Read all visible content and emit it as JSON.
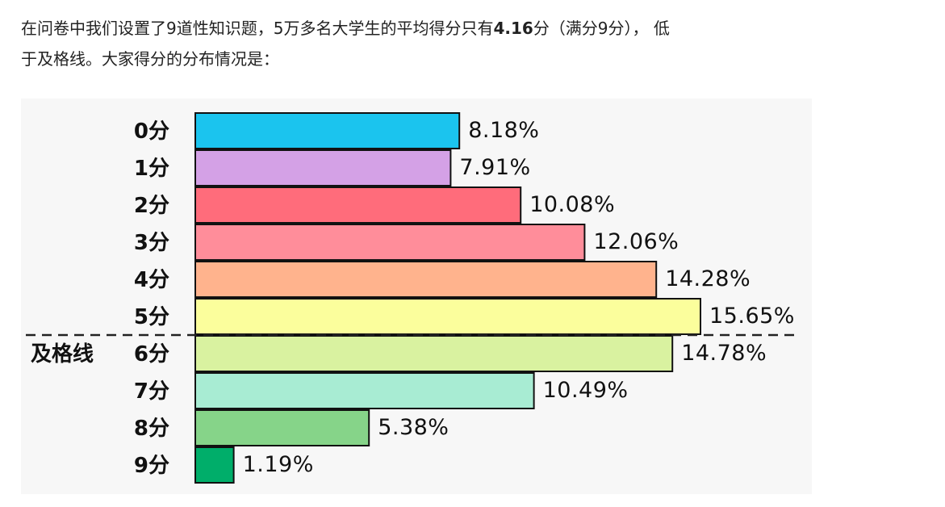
{
  "intro": {
    "line1_a": "在问卷中我们设置了9道性知识题，5万多名大学生的平均得分只有",
    "line1_bold": "4.16",
    "line1_b": "分（满分9分）， 低",
    "line2": "于及格线。大家得分的分布情况是："
  },
  "chart_data": {
    "type": "bar",
    "orientation": "horizontal",
    "categories": [
      "0分",
      "1分",
      "2分",
      "3分",
      "4分",
      "5分",
      "6分",
      "7分",
      "8分",
      "9分"
    ],
    "values": [
      8.18,
      7.91,
      10.08,
      12.06,
      14.28,
      15.65,
      14.78,
      10.49,
      5.38,
      1.19
    ],
    "value_labels": [
      "8.18%",
      "7.91%",
      "10.08%",
      "12.06%",
      "14.28%",
      "15.65%",
      "14.78%",
      "10.49%",
      "5.38%",
      "1.19%"
    ],
    "unit": "%",
    "colors": [
      "#1bc4ee",
      "#d4a1e6",
      "#ff6c7b",
      "#ff8d9a",
      "#ffb38d",
      "#fbfe9c",
      "#d9f2a0",
      "#a8ecd3",
      "#86d489",
      "#00ae6a"
    ],
    "threshold": {
      "label": "及格线",
      "between": [
        "5分",
        "6分"
      ],
      "style": "dashed"
    },
    "xlim": [
      0,
      16
    ],
    "grid": false,
    "legend": "none"
  }
}
